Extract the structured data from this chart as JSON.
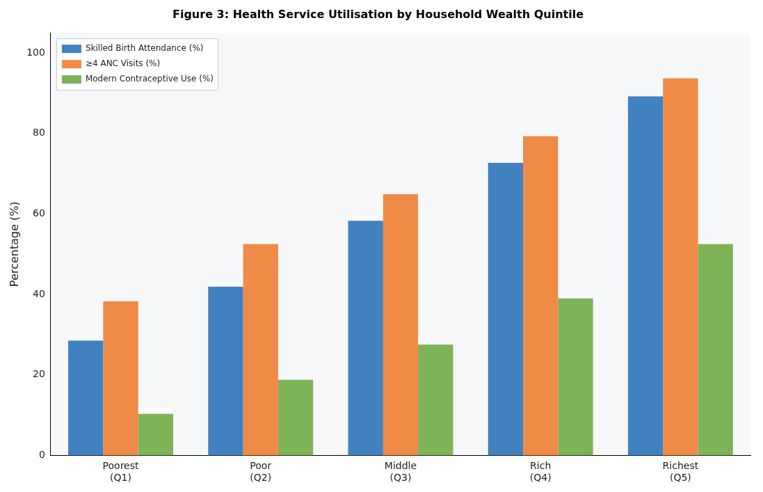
{
  "chart_data": {
    "type": "bar",
    "title": "Figure 3: Health Service Utilisation by Household Wealth Quintile",
    "ylabel": "Percentage (%)",
    "categories": [
      "Poorest\n(Q1)",
      "Poor\n(Q2)",
      "Middle\n(Q3)",
      "Rich\n(Q4)",
      "Richest\n(Q5)"
    ],
    "series": [
      {
        "name": "Skilled Birth Attendance (%)",
        "color": "#4281bf",
        "values": [
          28.5,
          41.9,
          58.3,
          72.7,
          89.2
        ]
      },
      {
        "name": "≥4 ANC Visits (%)",
        "color": "#ef8b47",
        "values": [
          38.3,
          52.5,
          64.9,
          79.3,
          93.7
        ]
      },
      {
        "name": "Modern Contraceptive Use (%)",
        "color": "#7db357",
        "values": [
          10.3,
          18.8,
          27.5,
          39.0,
          52.5
        ]
      }
    ],
    "ylim": [
      0,
      105
    ],
    "yticks": [
      0,
      20,
      40,
      60,
      80,
      100
    ],
    "grid": false,
    "legend": "top left"
  }
}
